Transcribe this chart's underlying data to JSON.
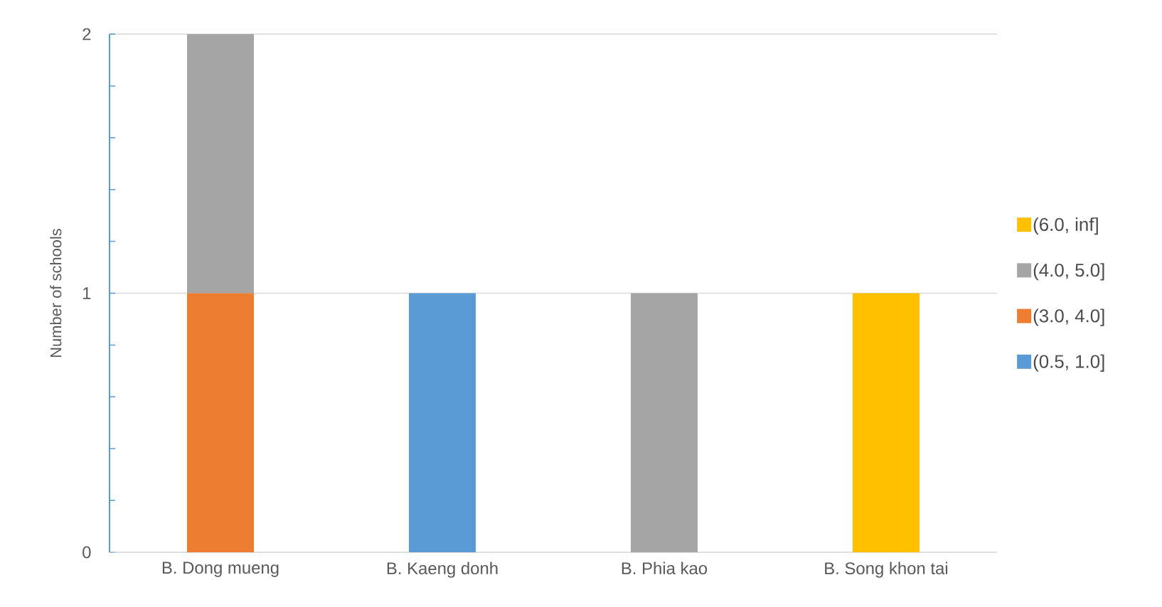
{
  "chart_data": {
    "type": "bar",
    "stacked": true,
    "ylabel": "Number of schools",
    "categories": [
      "B. Dong mueng",
      "B. Kaeng donh",
      "B. Phia kao",
      "B. Song khon tai"
    ],
    "series": [
      {
        "name": "(0.5, 1.0]",
        "color": "#5b9bd5",
        "values": [
          0,
          1,
          0,
          0
        ]
      },
      {
        "name": "(3.0, 4.0]",
        "color": "#ed7d31",
        "values": [
          1,
          0,
          0,
          0
        ]
      },
      {
        "name": "(4.0, 5.0]",
        "color": "#a5a5a5",
        "values": [
          1,
          0,
          1,
          0
        ]
      },
      {
        "name": "(6.0, inf]",
        "color": "#ffc000",
        "values": [
          0,
          0,
          0,
          1
        ]
      }
    ],
    "ylim": [
      0,
      2
    ],
    "yticks": [
      0,
      1,
      2
    ],
    "grid": "y",
    "legend": "right"
  }
}
